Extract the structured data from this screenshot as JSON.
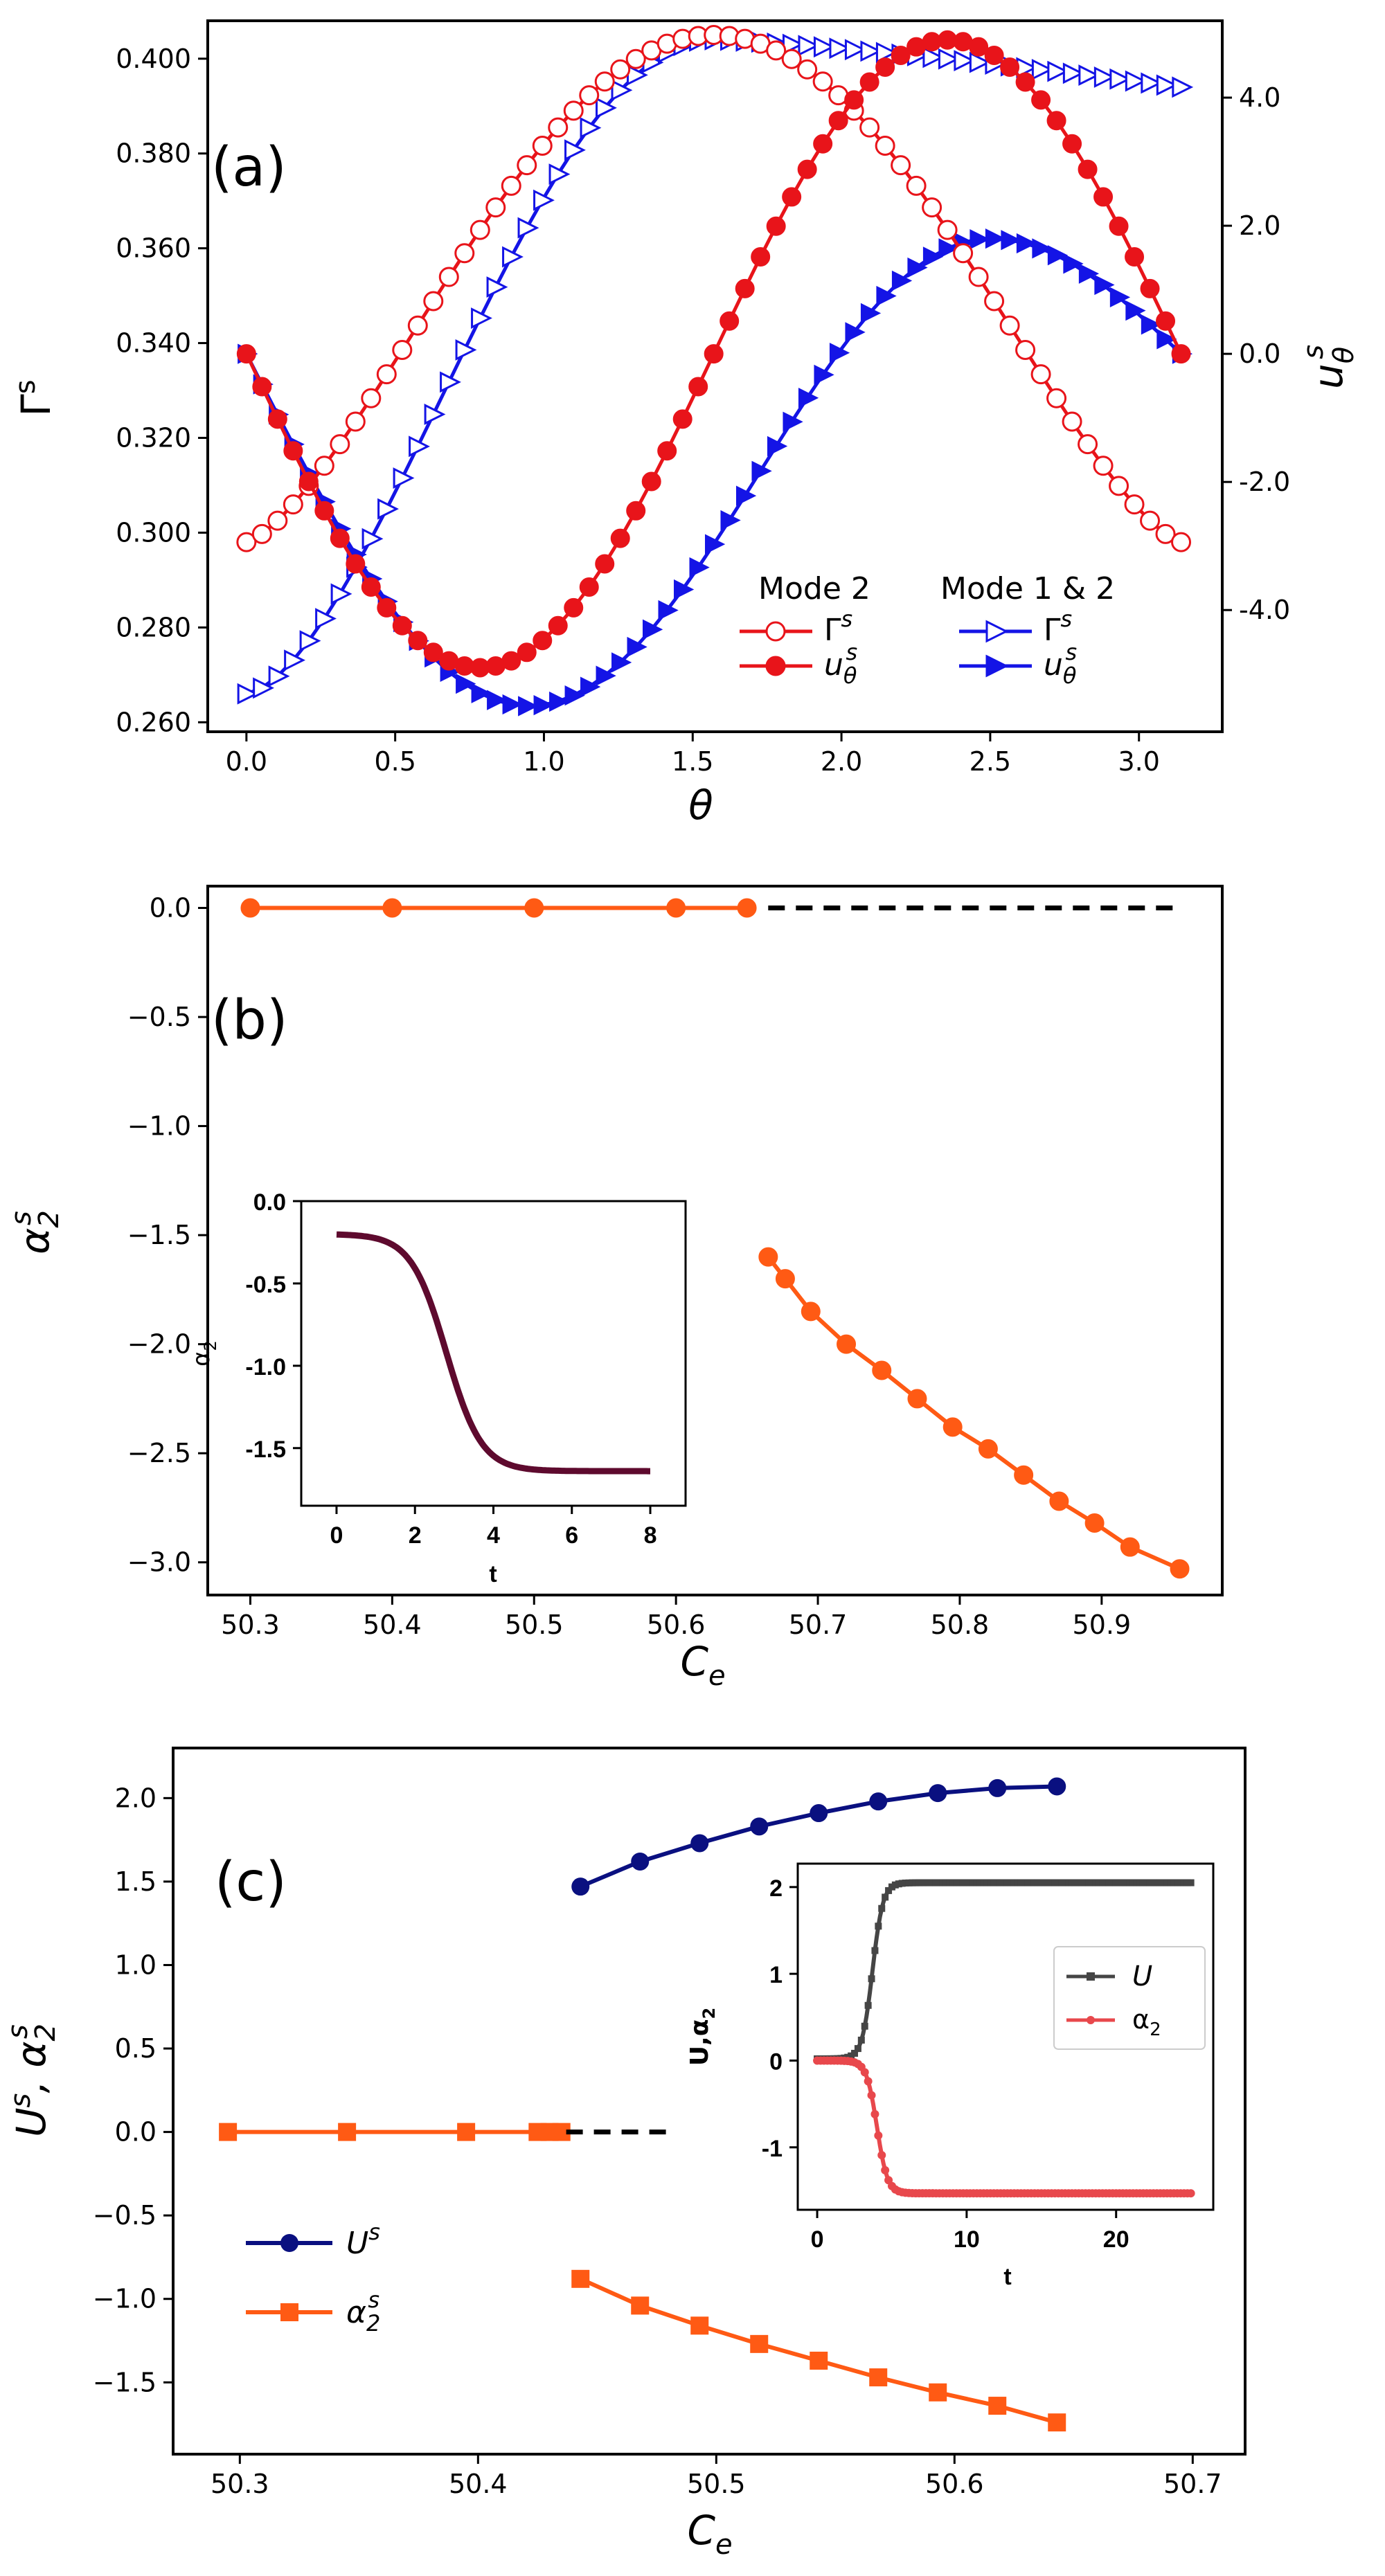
{
  "colors": {
    "red": "#e8141a",
    "blue": "#1414e6",
    "orange": "#ff5a14",
    "navy": "#0a1080",
    "dashed": "#000000",
    "inset_b": "#5e0a2e",
    "inset_U": "#454545",
    "inset_alpha": "#e8484c"
  },
  "chart_data": [
    {
      "panel": "(a)",
      "type": "line",
      "xlabel": "θ",
      "ylabel_left": "Γ",
      "ylabel_left_sup": "s",
      "ylabel_right": "u",
      "ylabel_right_sub": "θ",
      "ylabel_right_sup": "s",
      "xlim": [
        -0.13,
        3.28
      ],
      "ylim_left": [
        0.258,
        0.408
      ],
      "ylim_right": [
        -5.9,
        5.2
      ],
      "xticks": [
        "0.0",
        "0.5",
        "1.0",
        "1.5",
        "2.0",
        "2.5",
        "3.0"
      ],
      "yticks_left": [
        "0.260",
        "0.280",
        "0.300",
        "0.320",
        "0.340",
        "0.360",
        "0.380",
        "0.400"
      ],
      "yticks_right": [
        "-4.0",
        "-2.0",
        "0.0",
        "2.0",
        "4.0"
      ],
      "legend": {
        "group1_title": "Mode 2",
        "group2_title": "Mode 1 & 2",
        "gamma_label": "Γ",
        "u_label": "u",
        "sup": "s",
        "sub": "θ"
      },
      "series": [
        {
          "name": "Mode 2 Γ^s",
          "axis": "left",
          "color": "red",
          "marker": "open-circle",
          "formula": "gamma_mode2",
          "ymin": 0.298,
          "ymax": 0.405
        },
        {
          "name": "Mode 2 u_θ^s",
          "axis": "right",
          "color": "red",
          "marker": "filled-circle",
          "formula": "u_mode2",
          "amplitude": 4.9
        },
        {
          "name": "Mode 1 & 2 Γ^s",
          "axis": "left",
          "color": "blue",
          "marker": "open-triangle",
          "formula": "gamma_mode12",
          "ymin": 0.266,
          "ymax": 0.404,
          "end_value": 0.394
        },
        {
          "name": "Mode 1 & 2 u_θ^s",
          "axis": "right",
          "color": "blue",
          "marker": "filled-triangle",
          "formula": "u_mode12",
          "amplitude": 5.5,
          "peak": 1.8
        }
      ]
    },
    {
      "panel": "(b)",
      "type": "line",
      "xlabel": "C",
      "xlabel_sub": "e",
      "ylabel": "α",
      "ylabel_sub": "2",
      "ylabel_sup": "s",
      "xlim": [
        50.27,
        50.985
      ],
      "ylim": [
        -3.15,
        0.1
      ],
      "xticks": [
        "50.3",
        "50.4",
        "50.5",
        "50.6",
        "50.7",
        "50.8",
        "50.9"
      ],
      "xtick_values": [
        50.3,
        50.4,
        50.5,
        50.6,
        50.7,
        50.8,
        50.9
      ],
      "yticks": [
        "0.0",
        "−0.5",
        "−1.0",
        "−1.5",
        "−2.0",
        "−2.5",
        "−3.0"
      ],
      "ytick_values": [
        0.0,
        -0.5,
        -1.0,
        -1.5,
        -2.0,
        -2.5,
        -3.0
      ],
      "series": [
        {
          "name": "α2^s stable zero branch",
          "color": "orange",
          "x": [
            50.3,
            50.4,
            50.5,
            50.6,
            50.65
          ],
          "y": [
            0.0,
            0.0,
            0.0,
            0.0,
            0.0
          ]
        },
        {
          "name": "α2^s dashed continuation",
          "color": "dashed",
          "dashed": true,
          "x": [
            50.665,
            50.955
          ],
          "y": [
            0.0,
            0.0
          ]
        },
        {
          "name": "α2^s nonzero branch",
          "color": "orange",
          "x": [
            50.665,
            50.677,
            50.695,
            50.72,
            50.745,
            50.77,
            50.795,
            50.82,
            50.845,
            50.87,
            50.895,
            50.92,
            50.955
          ],
          "y": [
            -1.6,
            -1.7,
            -1.85,
            -2.0,
            -2.12,
            -2.25,
            -2.38,
            -2.48,
            -2.6,
            -2.72,
            -2.82,
            -2.93,
            -3.03
          ]
        }
      ],
      "inset": {
        "xlabel": "t",
        "ylabel": "α",
        "ylabel_sub": "2",
        "xlim": [
          -0.9,
          8.9
        ],
        "ylim": [
          -1.85,
          0.0
        ],
        "xticks": [
          "0",
          "2",
          "4",
          "6",
          "8"
        ],
        "xtick_values": [
          0,
          2,
          4,
          6,
          8
        ],
        "yticks": [
          "0.0",
          "-0.5",
          "-1.0",
          "-1.5"
        ],
        "ytick_values": [
          0.0,
          -0.5,
          -1.0,
          -1.5
        ],
        "series": [
          {
            "name": "α2(t)",
            "color": "inset_b",
            "t_range": [
              0,
              8
            ],
            "start": -0.2,
            "end": -1.64,
            "midpoint": 2.8
          }
        ]
      }
    },
    {
      "panel": "(c)",
      "type": "line",
      "xlabel": "C",
      "xlabel_sub": "e",
      "ylabel": "U",
      "ylabel_sup": "s",
      "ylabel_mid": ", α",
      "ylabel_sub": "2",
      "xlim": [
        50.272,
        50.722
      ],
      "ylim": [
        -1.93,
        2.3
      ],
      "xticks": [
        "50.3",
        "50.4",
        "50.5",
        "50.6",
        "50.7"
      ],
      "xtick_values": [
        50.3,
        50.4,
        50.5,
        50.6,
        50.7
      ],
      "yticks": [
        "2.0",
        "1.5",
        "1.0",
        "0.5",
        "0.0",
        "−0.5",
        "−1.0",
        "−1.5"
      ],
      "ytick_values": [
        2.0,
        1.5,
        1.0,
        0.5,
        0.0,
        -0.5,
        -1.0,
        -1.5
      ],
      "legend": {
        "u_label": "U",
        "alpha_label": "α",
        "sup": "s",
        "sub": "2"
      },
      "series": [
        {
          "name": "U^s",
          "color": "navy",
          "marker": "circle",
          "x": [
            50.443,
            50.468,
            50.493,
            50.518,
            50.543,
            50.568,
            50.593,
            50.618,
            50.643
          ],
          "y": [
            1.47,
            1.62,
            1.73,
            1.83,
            1.91,
            1.98,
            2.03,
            2.06,
            2.07
          ]
        },
        {
          "name": "α2^s zero branch",
          "color": "orange",
          "marker": "square",
          "x": [
            50.295,
            50.345,
            50.395,
            50.425,
            50.43,
            50.435
          ],
          "y": [
            0.0,
            0.0,
            0.0,
            0.0,
            0.0,
            0.0
          ]
        },
        {
          "name": "α2^s dashed continuation",
          "color": "dashed",
          "dashed": true,
          "x": [
            50.437,
            50.482
          ],
          "y": [
            0.0,
            0.0
          ]
        },
        {
          "name": "α2^s nonzero branch",
          "color": "orange",
          "marker": "square",
          "x": [
            50.443,
            50.468,
            50.493,
            50.518,
            50.543,
            50.568,
            50.593,
            50.618,
            50.643
          ],
          "y": [
            -0.88,
            -1.04,
            -1.16,
            -1.27,
            -1.37,
            -1.47,
            -1.56,
            -1.64,
            -1.74
          ]
        }
      ],
      "inset": {
        "xlabel": "t",
        "ylabel": "U,α",
        "ylabel_sub": "2",
        "xlim": [
          -1.3,
          26.5
        ],
        "ylim": [
          -1.72,
          2.27
        ],
        "xticks": [
          "0",
          "10",
          "20"
        ],
        "xtick_values": [
          0,
          10,
          20
        ],
        "yticks": [
          "2",
          "1",
          "0",
          "-1"
        ],
        "ytick_values": [
          2,
          1,
          0,
          -1
        ],
        "legend": {
          "u_label": "U",
          "alpha_label": "α",
          "sub": "2"
        },
        "series": [
          {
            "name": "U(t)",
            "color": "inset_U",
            "t_range": [
              0,
              25
            ],
            "start": 0.02,
            "end": 2.05,
            "midpoint": 3.7
          },
          {
            "name": "α2(t)",
            "color": "inset_alpha",
            "t_range": [
              0,
              25
            ],
            "start": 0.0,
            "end": -1.53,
            "midpoint": 4.0
          }
        ]
      }
    }
  ]
}
